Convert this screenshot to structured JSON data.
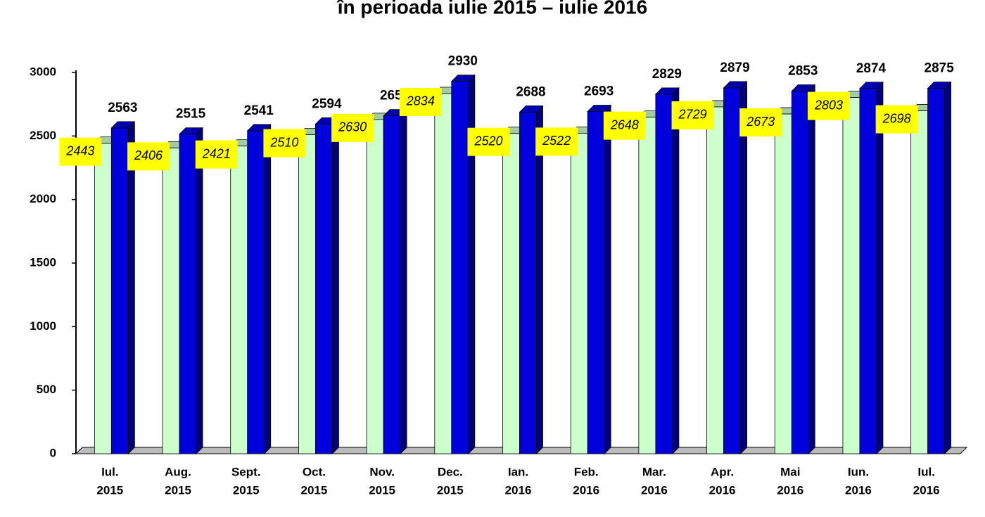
{
  "chart_data": {
    "type": "bar3d",
    "title": "în perioada iulie 2015 – iulie 2016",
    "categories": [
      [
        "Iul.",
        "2015"
      ],
      [
        "Aug.",
        "2015"
      ],
      [
        "Sept.",
        "2015"
      ],
      [
        "Oct.",
        "2015"
      ],
      [
        "Nov.",
        "2015"
      ],
      [
        "Dec.",
        "2015"
      ],
      [
        "Ian.",
        "2016"
      ],
      [
        "Feb.",
        "2016"
      ],
      [
        "Mar.",
        "2016"
      ],
      [
        "Apr.",
        "2016"
      ],
      [
        "Mai",
        "2016"
      ],
      [
        "Iun.",
        "2016"
      ],
      [
        "Iul.",
        "2016"
      ]
    ],
    "series": [
      {
        "color": "#ccffcc",
        "label_background": "#ffff00",
        "values": [
          2443,
          2406,
          2421,
          2510,
          2630,
          2834,
          2520,
          2522,
          2648,
          2729,
          2673,
          2803,
          2698
        ]
      },
      {
        "color": "#0000dd",
        "values": [
          2563,
          2515,
          2541,
          2594,
          2659,
          2930,
          2688,
          2693,
          2829,
          2879,
          2853,
          2874,
          2875
        ]
      }
    ],
    "ylim": [
      0,
      3000
    ],
    "yticks": [
      0,
      500,
      1000,
      1500,
      2000,
      2500,
      3000
    ]
  }
}
